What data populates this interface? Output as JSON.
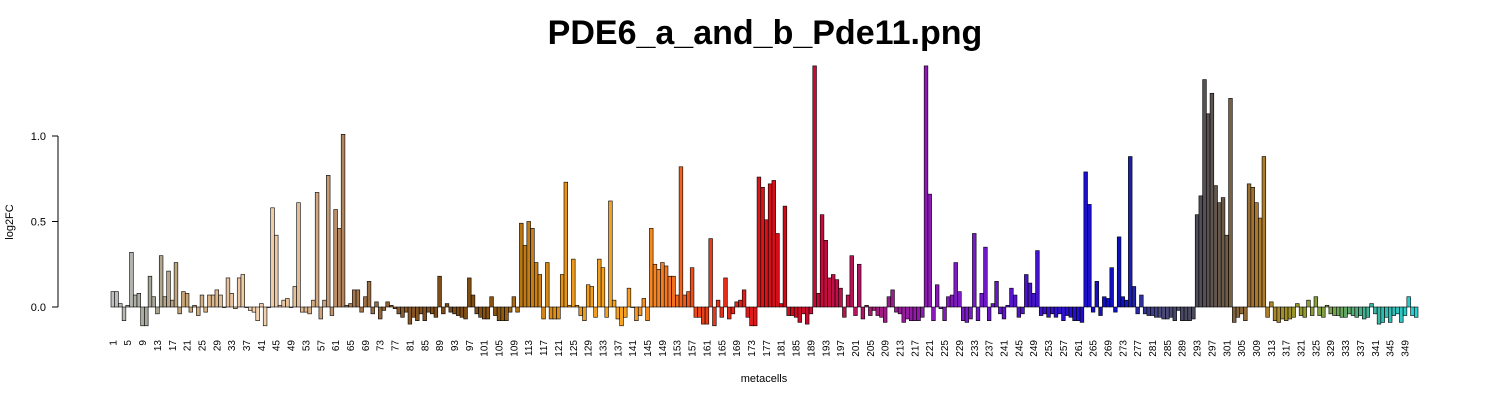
{
  "chart_data": {
    "type": "bar",
    "title": "PDE6_a_and_b_Pde11.png",
    "xlabel": "metacells",
    "ylabel": "log2FC",
    "ylim": [
      -0.12,
      1.45
    ],
    "yticks": [
      0.0,
      0.5,
      1.0
    ],
    "ytick_labels": [
      "0.0",
      "0.5",
      "1.0"
    ],
    "x_first": 1,
    "x_label_step": 4,
    "series": [
      {
        "values": [
          0.09,
          0.09,
          0.02,
          -0.08,
          0.01,
          0.32,
          0.07,
          0.08,
          -0.11,
          -0.11,
          0.18,
          0.06,
          -0.04,
          0.3,
          0.06,
          0.21,
          0.04,
          0.26,
          -0.04,
          0.09,
          0.08,
          -0.03,
          0.01,
          -0.05,
          0.07,
          -0.03,
          0.07,
          0.07,
          0.1,
          0.07,
          0.0,
          0.17,
          0.08,
          -0.01,
          0.17,
          0.19,
          0.0,
          -0.02,
          -0.03,
          -0.08,
          0.02,
          -0.11,
          0.0,
          0.58,
          0.42,
          0.01,
          0.04,
          0.05,
          0.0,
          0.12,
          0.61,
          -0.03,
          -0.03,
          -0.04,
          0.04,
          0.67,
          -0.07,
          0.04,
          0.77,
          -0.05,
          0.57,
          0.46,
          1.01,
          0.01,
          0.02,
          0.1,
          0.1,
          -0.03,
          0.06,
          0.15,
          -0.04,
          0.03,
          -0.07,
          -0.02,
          0.03,
          0.01,
          -0.01,
          -0.04,
          -0.06,
          -0.03,
          -0.1,
          -0.06,
          -0.08,
          -0.04,
          -0.08,
          -0.03,
          -0.04,
          -0.06,
          0.18,
          -0.04,
          0.02,
          -0.03,
          -0.04,
          -0.05,
          -0.06,
          -0.07,
          0.17,
          0.07,
          -0.04,
          -0.06,
          -0.07,
          -0.07,
          0.06,
          -0.05,
          -0.08,
          -0.08,
          -0.08,
          -0.03,
          0.06,
          -0.03,
          0.49,
          0.36,
          0.5,
          0.46,
          0.26,
          0.19,
          -0.07,
          0.26,
          -0.07,
          -0.07,
          -0.07,
          0.19,
          0.73,
          0.01,
          0.28,
          0.01,
          -0.05,
          -0.08,
          0.13,
          0.12,
          -0.06,
          0.28,
          0.23,
          -0.06,
          0.62,
          0.04,
          -0.07,
          -0.11,
          -0.06,
          0.11,
          0.0,
          -0.08,
          -0.05,
          0.05,
          -0.08,
          0.46,
          0.25,
          0.22,
          0.26,
          0.24,
          0.18,
          0.18,
          0.07,
          0.82,
          0.07,
          0.09,
          0.23,
          -0.06,
          -0.06,
          -0.1,
          -0.1,
          0.4,
          -0.11,
          0.04,
          -0.06,
          0.17,
          -0.07,
          -0.04,
          0.03,
          0.04,
          0.1,
          -0.06,
          -0.11,
          -0.11,
          0.76,
          0.7,
          0.51,
          0.72,
          0.74,
          0.43,
          0.02,
          0.59,
          -0.05,
          -0.05,
          -0.06,
          -0.09,
          -0.04,
          -0.1,
          -0.04,
          1.41,
          0.08,
          0.54,
          0.39,
          0.17,
          0.19,
          0.16,
          0.11,
          -0.06,
          0.07,
          0.3,
          -0.05,
          0.25,
          -0.07,
          0.01,
          -0.05,
          -0.02,
          -0.05,
          -0.06,
          -0.09,
          0.06,
          0.1,
          -0.03,
          -0.04,
          -0.09,
          -0.07,
          -0.08,
          -0.08,
          -0.08,
          -0.06,
          1.41,
          0.66,
          -0.08,
          0.13,
          -0.01,
          -0.08,
          0.06,
          0.07,
          0.26,
          0.09,
          -0.08,
          -0.09,
          -0.07,
          0.43,
          -0.08,
          0.08,
          0.35,
          -0.08,
          0.02,
          0.15,
          -0.04,
          -0.07,
          0.01,
          0.11,
          0.07,
          -0.06,
          -0.04,
          0.19,
          0.14,
          0.08,
          0.33,
          -0.05,
          -0.04,
          -0.06,
          -0.04,
          -0.06,
          -0.04,
          -0.08,
          -0.05,
          -0.06,
          -0.08,
          -0.08,
          -0.09,
          0.79,
          0.6,
          -0.03,
          0.15,
          -0.05,
          0.06,
          0.05,
          0.23,
          -0.03,
          0.41,
          0.06,
          0.04,
          0.88,
          0.12,
          -0.04,
          0.07,
          -0.04,
          -0.05,
          -0.05,
          -0.06,
          -0.06,
          -0.07,
          -0.07,
          -0.06,
          -0.08,
          -0.02,
          -0.08,
          -0.08,
          -0.08,
          -0.07,
          0.54,
          0.65,
          1.33,
          1.13,
          1.25,
          0.71,
          0.61,
          0.64,
          0.42,
          1.22,
          -0.09,
          -0.06,
          -0.04,
          -0.08,
          0.72,
          0.7,
          0.61,
          0.52,
          0.88,
          -0.06,
          0.03,
          -0.08,
          -0.09,
          -0.07,
          -0.08,
          -0.07,
          -0.06,
          0.02,
          -0.05,
          -0.06,
          0.04,
          -0.05,
          0.06,
          -0.05,
          -0.06,
          0.01,
          -0.04,
          -0.05,
          -0.05,
          -0.06,
          -0.06,
          -0.04,
          -0.05,
          -0.06,
          -0.05,
          -0.07,
          -0.06,
          0.02,
          -0.04,
          -0.1,
          -0.09,
          -0.06,
          -0.09,
          -0.05,
          -0.04,
          -0.09,
          -0.05,
          0.06,
          -0.05,
          -0.06
        ]
      }
    ],
    "color_stops": [
      [
        1,
        "#c0c0c0"
      ],
      [
        11,
        "#a6a69a"
      ],
      [
        21,
        "#c8a678"
      ],
      [
        32,
        "#e6c29c"
      ],
      [
        40,
        "#f4d3b2"
      ],
      [
        50,
        "#e6c29a"
      ],
      [
        58,
        "#c9a07c"
      ],
      [
        65,
        "#a87a52"
      ],
      [
        78,
        "#8a5a2a"
      ],
      [
        92,
        "#7a4a16"
      ],
      [
        105,
        "#8a5612"
      ],
      [
        112,
        "#c07a14"
      ],
      [
        125,
        "#ee9a1a"
      ],
      [
        138,
        "#f6a424"
      ],
      [
        150,
        "#f47a22"
      ],
      [
        160,
        "#e84018"
      ],
      [
        172,
        "#de1c1c"
      ],
      [
        182,
        "#d20a18"
      ],
      [
        190,
        "#c80a36"
      ],
      [
        200,
        "#b81454"
      ],
      [
        210,
        "#9c1c8e"
      ],
      [
        222,
        "#8a1ab8"
      ],
      [
        232,
        "#7a1ac8"
      ],
      [
        245,
        "#5214cc"
      ],
      [
        260,
        "#2410cc"
      ],
      [
        272,
        "#0c10c2"
      ],
      [
        283,
        "#4a4a7c"
      ],
      [
        292,
        "#4a4a5c"
      ],
      [
        300,
        "#6a5a48"
      ],
      [
        310,
        "#b07a2a"
      ],
      [
        320,
        "#9a9a2a"
      ],
      [
        330,
        "#78a450"
      ],
      [
        340,
        "#3ab4a0"
      ],
      [
        350,
        "#2acaca"
      ],
      [
        357,
        "#26e8e4"
      ]
    ]
  }
}
